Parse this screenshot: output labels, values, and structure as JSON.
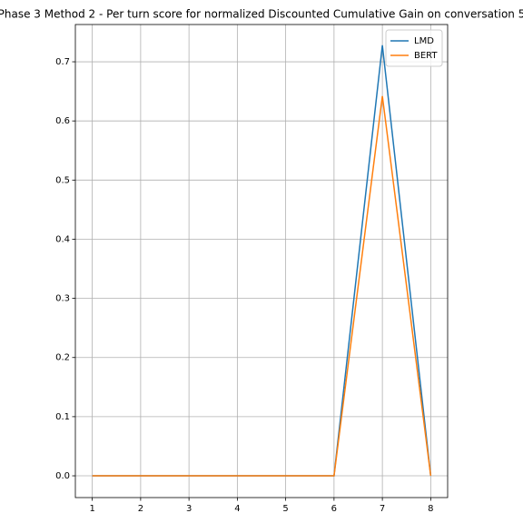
{
  "chart_data": {
    "type": "line",
    "title": "Phase 3 Method 2 - Per turn score for normalized Discounted Cumulative Gain on conversation 5",
    "x": [
      1,
      2,
      3,
      4,
      5,
      6,
      7,
      8
    ],
    "series": [
      {
        "name": "LMD",
        "color": "#1f77b4",
        "values": [
          0,
          0,
          0,
          0,
          0,
          0,
          0.728,
          0
        ]
      },
      {
        "name": "BERT",
        "color": "#ff7f0e",
        "values": [
          0,
          0,
          0,
          0,
          0,
          0,
          0.642,
          0
        ]
      }
    ],
    "xlim": [
      0.65,
      8.35
    ],
    "ylim": [
      -0.0368,
      0.763
    ],
    "xticks": [
      1,
      2,
      3,
      4,
      5,
      6,
      7,
      8
    ],
    "yticks": [
      {
        "value": 0,
        "label": "0.0"
      },
      0.1,
      0.2,
      0.3,
      0.4,
      0.5,
      0.6,
      0.7
    ],
    "grid": true,
    "legend": "upper right"
  }
}
